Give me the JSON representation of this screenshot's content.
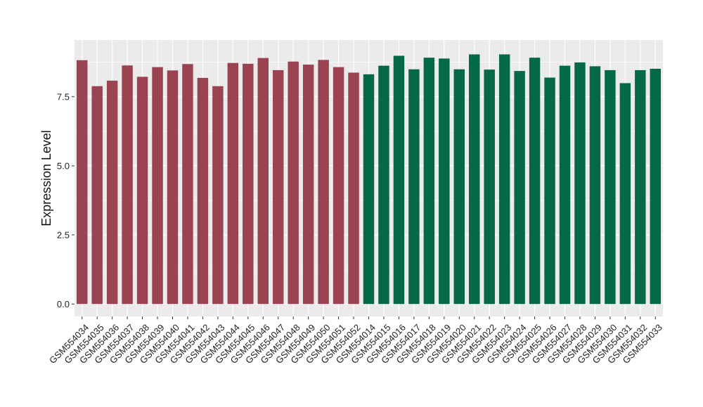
{
  "chart_data": {
    "type": "bar",
    "title": "",
    "xlabel": "",
    "ylabel": "Expression Level",
    "ylim": [
      -0.45,
      9.55
    ],
    "yticks": [
      0.0,
      2.5,
      5.0,
      7.5
    ],
    "ytick_labels": [
      "0.0",
      "2.5",
      "5.0",
      "7.5"
    ],
    "grid": true,
    "legend": "none",
    "colors": {
      "group1": "#9b4350",
      "group2": "#046a45",
      "panel": "#ebebeb",
      "grid": "#ffffff"
    },
    "categories": [
      "GSM554034",
      "GSM554035",
      "GSM554036",
      "GSM554037",
      "GSM554038",
      "GSM554039",
      "GSM554040",
      "GSM554041",
      "GSM554042",
      "GSM554043",
      "GSM554044",
      "GSM554045",
      "GSM554046",
      "GSM554047",
      "GSM554048",
      "GSM554049",
      "GSM554050",
      "GSM554051",
      "GSM554052",
      "GSM554014",
      "GSM554015",
      "GSM554016",
      "GSM554017",
      "GSM554018",
      "GSM554019",
      "GSM554020",
      "GSM554021",
      "GSM554022",
      "GSM554023",
      "GSM554024",
      "GSM554025",
      "GSM554026",
      "GSM554027",
      "GSM554028",
      "GSM554029",
      "GSM554030",
      "GSM554031",
      "GSM554032",
      "GSM554033"
    ],
    "values": [
      8.82,
      7.88,
      8.08,
      8.63,
      8.22,
      8.57,
      8.45,
      8.68,
      8.18,
      7.88,
      8.72,
      8.69,
      8.9,
      8.46,
      8.77,
      8.66,
      8.83,
      8.57,
      8.37,
      8.31,
      8.62,
      8.98,
      8.49,
      8.91,
      8.88,
      8.49,
      9.03,
      8.48,
      9.03,
      8.43,
      8.91,
      8.19,
      8.62,
      8.74,
      8.6,
      8.46,
      7.99,
      8.46,
      8.51
    ],
    "groups": [
      1,
      1,
      1,
      1,
      1,
      1,
      1,
      1,
      1,
      1,
      1,
      1,
      1,
      1,
      1,
      1,
      1,
      1,
      1,
      2,
      2,
      2,
      2,
      2,
      2,
      2,
      2,
      2,
      2,
      2,
      2,
      2,
      2,
      2,
      2,
      2,
      2,
      2,
      2
    ]
  }
}
